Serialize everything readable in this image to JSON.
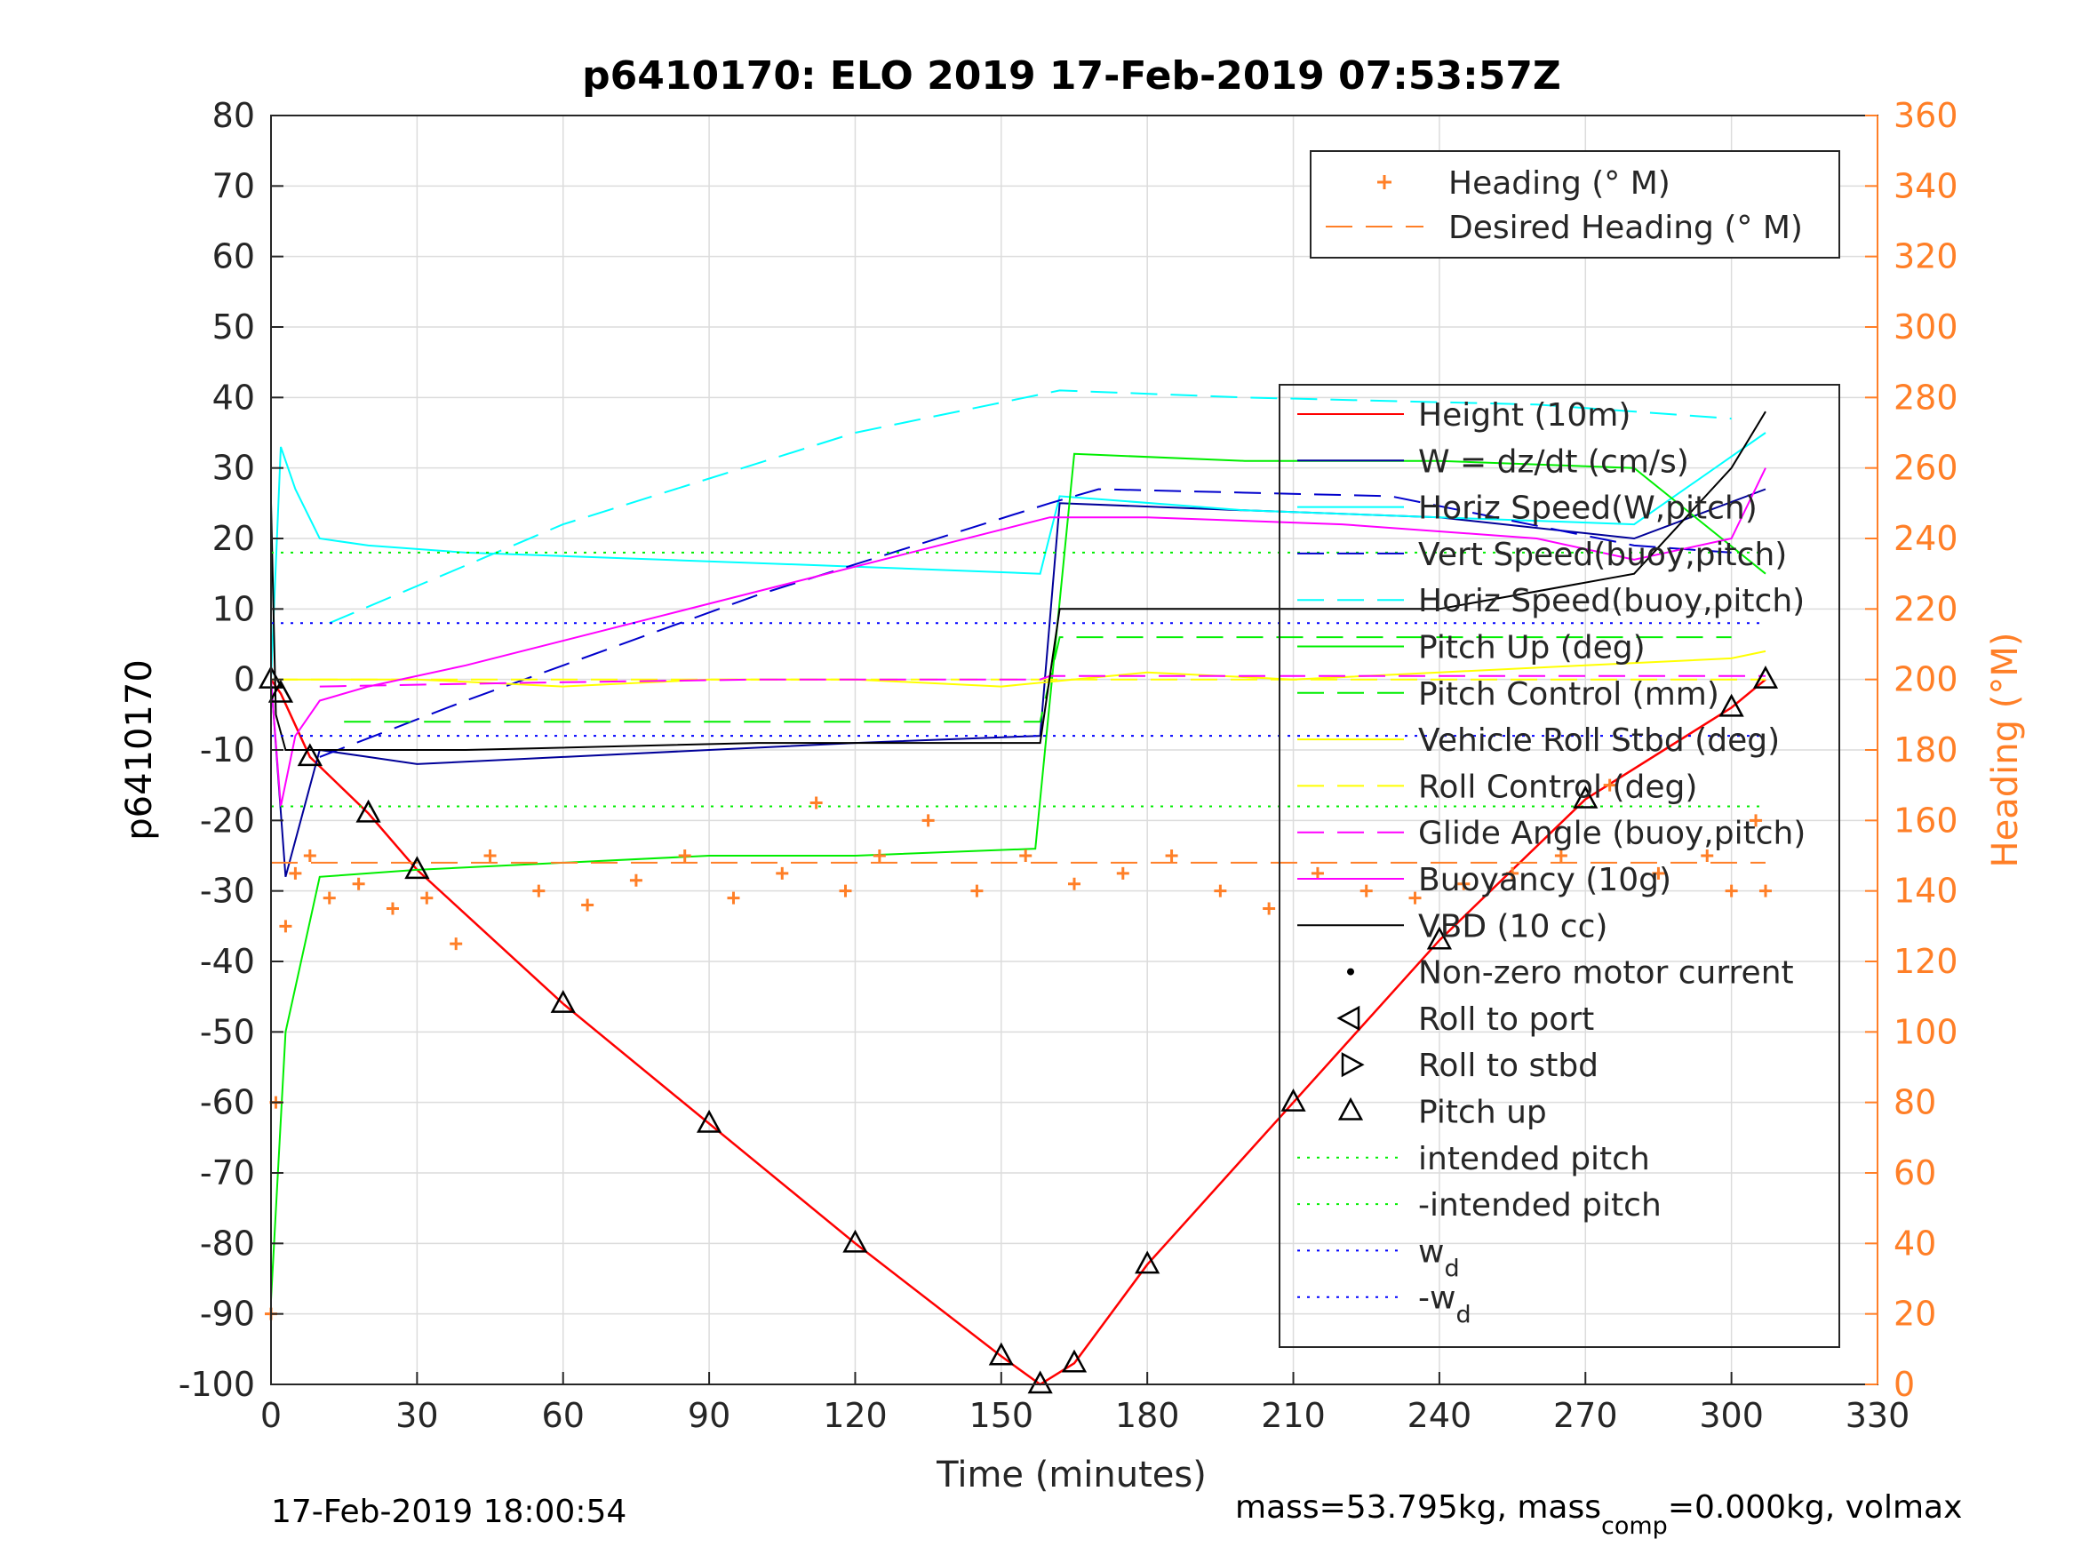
{
  "chart_data": {
    "type": "line",
    "title": "p6410170: ELO 2019 17-Feb-2019 07:53:57Z",
    "xlabel": "Time (minutes)",
    "ylabel_left": "p6410170",
    "ylabel_right": "Heading (°M)",
    "xlim": [
      0,
      330
    ],
    "ylim_left": [
      -100,
      80
    ],
    "ylim_right": [
      0,
      360
    ],
    "xticks": [
      0,
      30,
      60,
      90,
      120,
      150,
      180,
      210,
      240,
      270,
      300,
      330
    ],
    "yticks_left": [
      80,
      70,
      60,
      50,
      40,
      30,
      20,
      10,
      0,
      -10,
      -20,
      -30,
      -40,
      -50,
      -60,
      -70,
      -80,
      -90,
      -100
    ],
    "yticks_right": [
      360,
      340,
      320,
      300,
      280,
      260,
      240,
      220,
      200,
      180,
      160,
      140,
      120,
      100,
      80,
      60,
      40,
      20,
      0
    ],
    "grid": true,
    "colors": {
      "height": "#ff0000",
      "w": "#000099",
      "horiz_speed": "#00ffff",
      "vert_speed_buoy": "#0000cc",
      "pitch": "#00ee00",
      "roll": "#ffff00",
      "glide": "#ff00ff",
      "buoyancy": "#ff00ff",
      "vbd": "#000000",
      "heading": "#ff7f27",
      "intended_pitch": "#00ee00",
      "wd": "#0000ff"
    },
    "series": [
      {
        "name": "Height (10m)",
        "x": [
          0,
          2,
          8,
          20,
          30,
          60,
          90,
          120,
          150,
          158,
          165,
          180,
          210,
          240,
          270,
          300,
          307
        ],
        "y": [
          0,
          -2,
          -11,
          -19,
          -27,
          -46,
          -63,
          -80,
          -96,
          -100,
          -97,
          -83,
          -60,
          -37,
          -17,
          -4,
          0
        ]
      },
      {
        "name": "W = dz/dt (cm/s)",
        "x": [
          0,
          3,
          10,
          20,
          30,
          60,
          90,
          120,
          158,
          162,
          200,
          240,
          280,
          307
        ],
        "y": [
          0,
          -28,
          -10,
          -11,
          -12,
          -11,
          -10,
          -9,
          -8,
          25,
          24,
          23,
          20,
          27
        ]
      },
      {
        "name": "Horiz Speed(W,pitch)",
        "x": [
          0,
          2,
          5,
          10,
          20,
          40,
          80,
          120,
          158,
          162,
          200,
          240,
          280,
          307
        ],
        "y": [
          0,
          33,
          27,
          20,
          19,
          18,
          17,
          16,
          15,
          26,
          24,
          23,
          22,
          35
        ]
      },
      {
        "name": "Vert Speed(buoy,pitch)",
        "x": [
          10,
          40,
          100,
          160,
          170,
          230,
          280,
          300
        ],
        "y": [
          -11,
          -3,
          12,
          25,
          27,
          26,
          19,
          18
        ]
      },
      {
        "name": "Horiz Speed(buoy,pitch)",
        "x": [
          12,
          60,
          120,
          162,
          200,
          260,
          300
        ],
        "y": [
          8,
          22,
          35,
          41,
          40,
          39,
          37
        ]
      },
      {
        "name": "Pitch Up (deg)",
        "x": [
          0,
          3,
          10,
          30,
          60,
          90,
          120,
          157,
          159,
          165,
          200,
          240,
          280,
          307
        ],
        "y": [
          -88,
          -50,
          -28,
          -27,
          -26,
          -25,
          -25,
          -24,
          -10,
          32,
          31,
          31,
          30,
          15
        ]
      },
      {
        "name": "Pitch Control (mm)",
        "x": [
          15,
          60,
          100,
          158,
          162,
          200,
          240,
          300
        ],
        "y": [
          -6,
          -6,
          -6,
          -6,
          6,
          6,
          6,
          6
        ]
      },
      {
        "name": "Vehicle Roll Stbd (deg)",
        "x": [
          0,
          30,
          60,
          90,
          120,
          150,
          180,
          210,
          240,
          270,
          300,
          307
        ],
        "y": [
          0,
          0,
          -1,
          0,
          0,
          -1,
          1,
          0,
          1,
          2,
          3,
          4
        ]
      },
      {
        "name": "Roll Control (deg)",
        "x": [
          0,
          30,
          60,
          90,
          120,
          150,
          180,
          210,
          240,
          270,
          300,
          307
        ],
        "y": [
          0,
          0,
          0,
          0,
          0,
          0,
          0,
          0,
          0,
          0,
          0,
          0
        ]
      },
      {
        "name": "Glide Angle (buoy,pitch)",
        "x": [
          10,
          50,
          100,
          158,
          160,
          200,
          250,
          307
        ],
        "y": [
          -1,
          -0.5,
          0,
          0,
          0.5,
          0.5,
          0.5,
          0.5
        ]
      },
      {
        "name": "Buoyancy (10g)",
        "x": [
          0,
          2,
          5,
          10,
          20,
          40,
          80,
          120,
          160,
          180,
          220,
          260,
          280,
          300,
          307
        ],
        "y": [
          0,
          -18,
          -8,
          -3,
          -1,
          2,
          9,
          16,
          23,
          23,
          22,
          20,
          17,
          20,
          30
        ]
      },
      {
        "name": "VBD (10 cc)",
        "x": [
          0,
          1,
          3,
          6,
          10,
          40,
          100,
          158,
          162,
          200,
          240,
          280,
          300,
          307
        ],
        "y": [
          25,
          -5,
          -10,
          -10,
          -10,
          -10,
          -9,
          -9,
          10,
          10,
          10,
          15,
          30,
          38
        ]
      },
      {
        "name": "intended pitch",
        "x": [
          0,
          307
        ],
        "y": [
          18,
          18
        ]
      },
      {
        "name": "-intended pitch",
        "x": [
          0,
          307
        ],
        "y": [
          -18,
          -18
        ]
      },
      {
        "name": "w",
        "x": [
          0,
          307
        ],
        "y": [
          8,
          8
        ]
      },
      {
        "name": "-w",
        "x": [
          0,
          307
        ],
        "y": [
          -8,
          -8
        ]
      }
    ],
    "heading_series": [
      {
        "name": "Heading (° M)",
        "x": [
          0,
          1,
          3,
          5,
          8,
          12,
          18,
          25,
          32,
          38,
          45,
          55,
          65,
          75,
          85,
          95,
          105,
          112,
          118,
          125,
          135,
          145,
          155,
          165,
          175,
          185,
          195,
          205,
          215,
          225,
          235,
          245,
          255,
          265,
          275,
          285,
          295,
          300,
          305,
          307
        ],
        "y": [
          20,
          80,
          130,
          145,
          150,
          138,
          142,
          135,
          138,
          125,
          150,
          140,
          136,
          143,
          150,
          138,
          145,
          165,
          140,
          150,
          160,
          140,
          150,
          142,
          145,
          150,
          140,
          135,
          145,
          140,
          138,
          142,
          145,
          150,
          170,
          145,
          150,
          140,
          160,
          140
        ]
      },
      {
        "name": "Desired Heading (° M)",
        "x": [
          0,
          307
        ],
        "y": [
          148,
          148
        ]
      }
    ],
    "legend_heading": [
      "Heading (° M)",
      "Desired Heading (° M)"
    ],
    "legend_main": [
      "Height (10m)",
      "W = dz/dt (cm/s)",
      "Horiz Speed(W,pitch)",
      "Vert Speed(buoy,pitch)",
      "Horiz Speed(buoy,pitch)",
      "Pitch Up (deg)",
      "Pitch Control (mm)",
      "Vehicle Roll Stbd (deg)",
      "Roll Control (deg)",
      "Glide Angle (buoy,pitch)",
      "Buoyancy (10g)",
      "VBD (10 cc)",
      "Non-zero motor current",
      "Roll to port",
      "Roll to stbd",
      "Pitch up",
      "intended pitch",
      "-intended pitch",
      "w",
      "-w"
    ],
    "legend_subscripts": [
      "d",
      "d"
    ],
    "footer_left": "17-Feb-2019 18:00:54",
    "footer_right_a": "mass=53.795kg, mass",
    "footer_right_sub": "comp",
    "footer_right_b": "=0.000kg, volmax"
  }
}
